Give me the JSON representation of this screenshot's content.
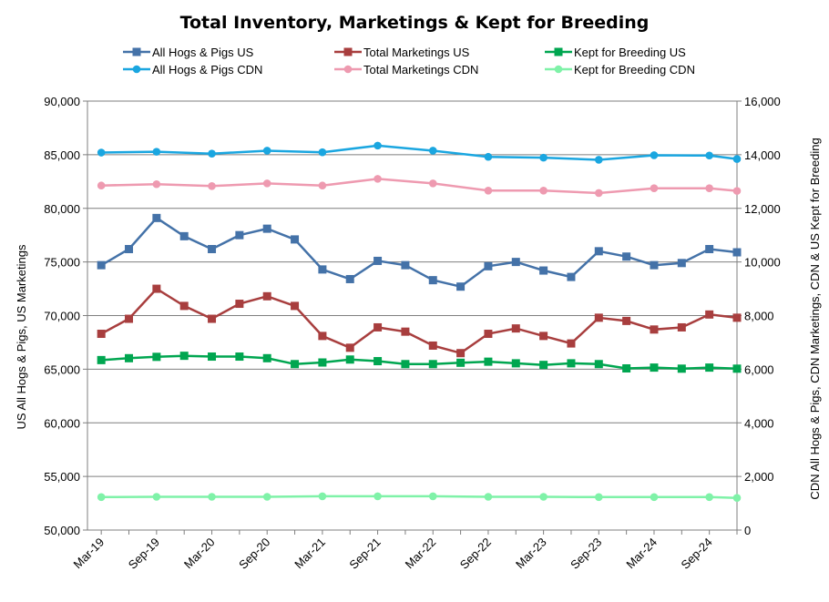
{
  "chart_data": {
    "type": "line",
    "title": "Total Inventory, Marketings & Kept for Breeding",
    "ylabel": "US All Hogs & Pigs, US Marketings",
    "y2label": "CDN All Hogs & Pigs, CDN Marketings, CDN & US Kept for Breeding",
    "ylim": [
      50000,
      90000
    ],
    "y2lim": [
      0,
      16000
    ],
    "y_ticks": [
      "50,000",
      "55,000",
      "60,000",
      "65,000",
      "70,000",
      "75,000",
      "80,000",
      "85,000",
      "90,000"
    ],
    "y2_ticks": [
      "0",
      "2,000",
      "4,000",
      "6,000",
      "8,000",
      "10,000",
      "12,000",
      "14,000",
      "16,000"
    ],
    "x_tick_labels": [
      "Mar-19",
      "Sep-19",
      "Mar-20",
      "Sep-20",
      "Mar-21",
      "Sep-21",
      "Mar-22",
      "Sep-22",
      "Mar-23",
      "Sep-23",
      "Mar-24",
      "Sep-24"
    ],
    "grid": true,
    "legend_position": "top",
    "series": [
      {
        "name": "All Hogs & Pigs US",
        "axis": "left",
        "color": "#4472A8",
        "marker": "square",
        "values": [
          74700,
          76200,
          79100,
          77400,
          76200,
          77500,
          78100,
          77100,
          74300,
          73400,
          75100,
          74700,
          73300,
          72700,
          74600,
          75000,
          74200,
          73600,
          76000,
          75500,
          74700,
          74900,
          76200,
          75900
        ]
      },
      {
        "name": "Total Marketings US",
        "axis": "left",
        "color": "#A83E3E",
        "marker": "square",
        "values": [
          68300,
          69700,
          72500,
          70900,
          69700,
          71100,
          71800,
          70900,
          68100,
          67000,
          68900,
          68500,
          67200,
          66500,
          68300,
          68800,
          68100,
          67400,
          69800,
          69500,
          68700,
          68900,
          70100,
          69800
        ]
      },
      {
        "name": "Kept for Breeding US",
        "axis": "right",
        "color": "#00A650",
        "marker": "square",
        "values": [
          6340,
          6410,
          6460,
          6500,
          6470,
          6470,
          6410,
          6190,
          6250,
          6360,
          6300,
          6190,
          6190,
          6240,
          6280,
          6220,
          6160,
          6220,
          6190,
          6030,
          6060,
          6020,
          6060,
          6020
        ]
      },
      {
        "name": "All Hogs & Pigs CDN",
        "axis": "right",
        "color": "#1AA6E0",
        "marker": "circle",
        "values": [
          14080,
          null,
          14110,
          null,
          14040,
          null,
          14150,
          null,
          14090,
          null,
          14340,
          null,
          14150,
          null,
          13920,
          null,
          13890,
          null,
          13810,
          null,
          13980,
          null,
          13970,
          13840
        ]
      },
      {
        "name": "Total Marketings CDN",
        "axis": "right",
        "color": "#EE9AB0",
        "marker": "circle",
        "values": [
          12850,
          null,
          12900,
          null,
          12830,
          null,
          12930,
          null,
          12850,
          null,
          13100,
          null,
          12930,
          null,
          12660,
          null,
          12660,
          null,
          12570,
          null,
          12750,
          null,
          12750,
          12650
        ]
      },
      {
        "name": "Kept for Breeding CDN",
        "axis": "right",
        "color": "#7FF2A8",
        "marker": "circle",
        "values": [
          1230,
          null,
          1240,
          null,
          1240,
          null,
          1240,
          null,
          1260,
          null,
          1260,
          null,
          1260,
          null,
          1240,
          null,
          1240,
          null,
          1230,
          null,
          1230,
          null,
          1230,
          1200
        ]
      }
    ]
  }
}
